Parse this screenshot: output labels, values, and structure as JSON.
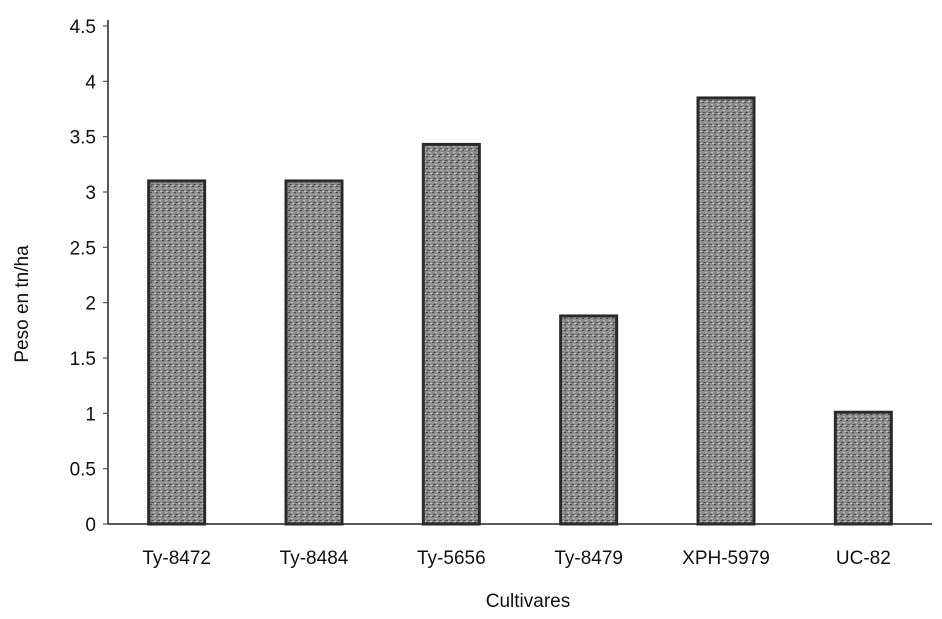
{
  "chart_data": {
    "type": "bar",
    "title": "",
    "xlabel": "Cultivares",
    "ylabel": "Peso en tn/ha",
    "categories": [
      "Ty-8472",
      "Ty-8484",
      "Ty-5656",
      "Ty-8479",
      "XPH-5979",
      "UC-82"
    ],
    "values": [
      3.1,
      3.1,
      3.43,
      1.88,
      3.85,
      1.01
    ],
    "ylim": [
      0,
      4.5
    ],
    "yticks": [
      "0",
      "0.5",
      "1",
      "1.5",
      "2",
      "2.5",
      "3",
      "3.5",
      "4",
      "4.5"
    ],
    "grid": false,
    "legend": "none",
    "colors": {
      "bar_fill": "#8c8c8c",
      "bar_texture": "#4a4a4a",
      "bar_edge": "#2a2a2a"
    }
  }
}
